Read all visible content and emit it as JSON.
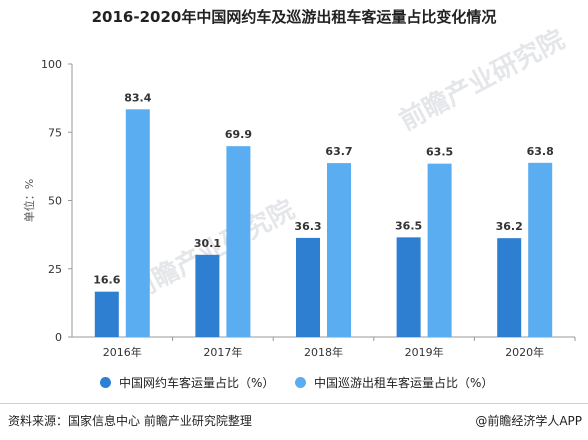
{
  "title": "2016-2020年中国网约车及巡游出租车客运量占比变化情况",
  "source": "资料来源：国家信息中心 前瞻产业研究院整理",
  "brand": "@前瞻经济学人APP",
  "watermark_text": "前瞻产业研究院",
  "chart_data": {
    "type": "bar",
    "title": "2016-2020年中国网约车及巡游出租车客运量占比变化情况",
    "ylabel": "单位：%",
    "xlabel": "",
    "ylim": [
      0,
      100
    ],
    "yticks": [
      0,
      25,
      50,
      75,
      100
    ],
    "categories": [
      "2016年",
      "2017年",
      "2018年",
      "2019年",
      "2020年"
    ],
    "series": [
      {
        "name": "中国网约车客运量占比（%）",
        "values": [
          16.6,
          30.1,
          36.3,
          36.5,
          36.2
        ],
        "color": "#2e7ed1"
      },
      {
        "name": "中国巡游出租车客运量占比（%）",
        "values": [
          83.4,
          69.9,
          63.7,
          63.5,
          63.8
        ],
        "color": "#5aadf0"
      }
    ],
    "grid": false,
    "legend": "bottom"
  }
}
